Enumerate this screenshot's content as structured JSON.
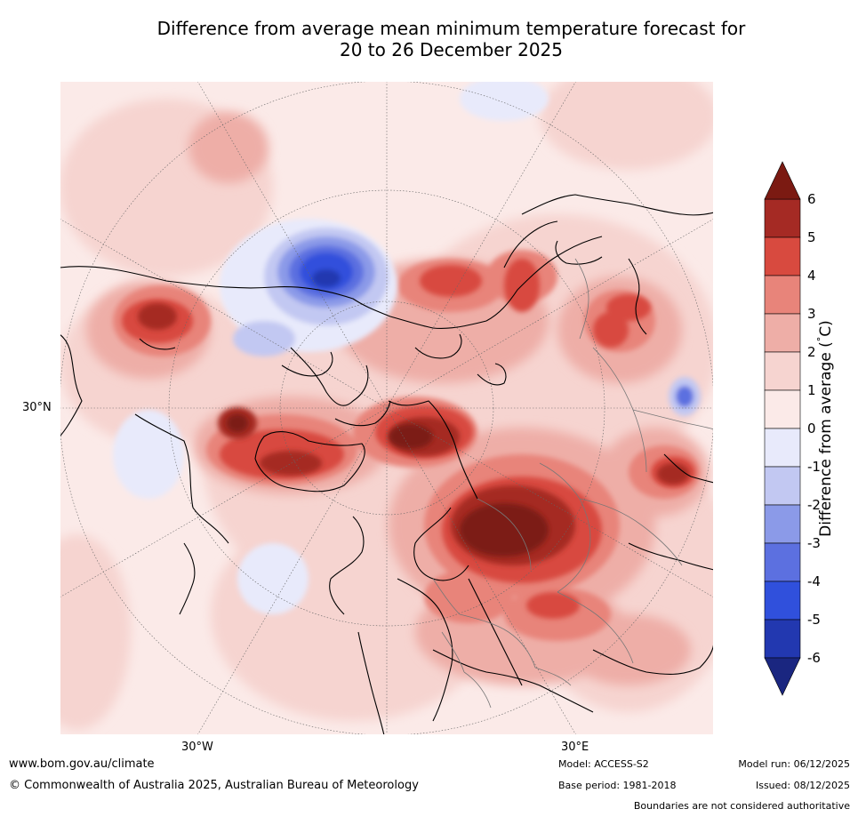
{
  "title": {
    "line1": "Difference from average mean minimum temperature forecast for",
    "line2": "20 to 26 December 2025"
  },
  "map": {
    "projection": "North polar stereographic",
    "lat_labels": [
      "30°N"
    ],
    "lon_labels": [
      "30°W",
      "30°E"
    ]
  },
  "colorbar": {
    "title": "Difference from average (°C)",
    "title_prefix": "Difference from average (",
    "title_degree": "°",
    "title_suffix": "C)",
    "tick_labels": [
      "6",
      "5",
      "4",
      "3",
      "2",
      "1",
      "0",
      "-1",
      "-2",
      "-3",
      "-4",
      "-5",
      "-6"
    ],
    "colors": {
      "above6": "#7b1a12",
      "5to6": "#a52a24",
      "4to5": "#d84a3f",
      "3to4": "#e8847a",
      "2to3": "#eeaea7",
      "1to2": "#f6d4d0",
      "0to1": "#fbeae8",
      "m1to0": "#e8eafb",
      "m2tom1": "#c2c8f2",
      "m3tom2": "#8b9ae8",
      "m4tom3": "#5c70e0",
      "m5tom4": "#3050dc",
      "m6tom5": "#2238b0",
      "belowm6": "#1a2680"
    }
  },
  "footer": {
    "website": "www.bom.gov.au/climate",
    "copyright": "© Commonwealth of Australia 2025, Australian Bureau of Meteorology",
    "model": "Model: ACCESS-S2",
    "base_period": "Base period: 1981-2018",
    "model_run": "Model run: 06/12/2025",
    "issued": "Issued: 08/12/2025",
    "disclaimer": "Boundaries are not considered authoritative"
  }
}
